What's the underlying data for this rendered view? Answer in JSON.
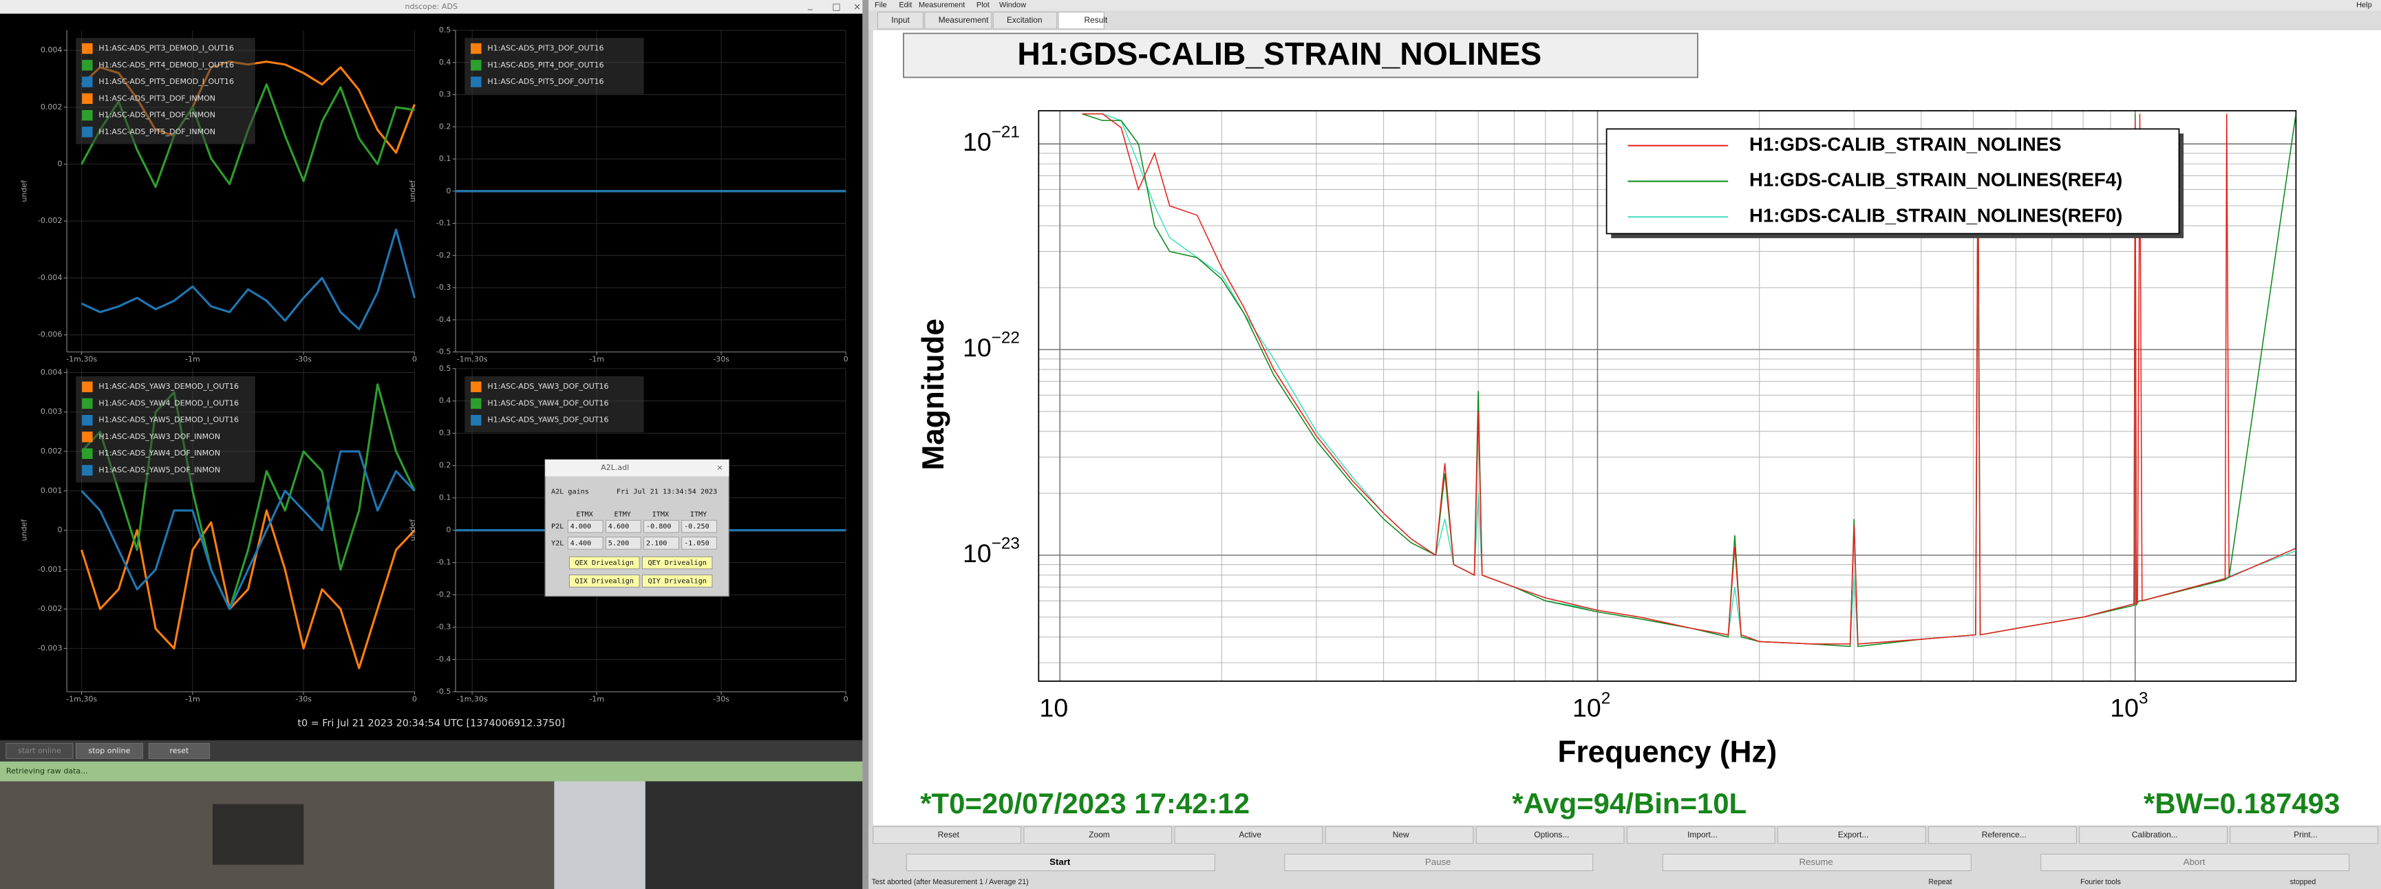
{
  "ndscope": {
    "window_title": "ndscope: ADS",
    "chart_data": [
      {
        "type": "line",
        "ylabel": "undef",
        "grid": true,
        "xlim": [
          -94,
          0
        ],
        "xticks": [
          {
            "value": -90,
            "label": "-1m,30s"
          },
          {
            "value": -60,
            "label": "-1m"
          },
          {
            "value": -30,
            "label": "-30s"
          },
          0
        ],
        "ylim": [
          -0.0066,
          0.0047
        ],
        "yticks": [
          0.004,
          0.002,
          0,
          -0.002,
          -0.004,
          -0.006
        ],
        "x": [
          -90,
          -85,
          -80,
          -75,
          -70,
          -65,
          -60,
          -55,
          -50,
          -45,
          -40,
          -35,
          -30,
          -25,
          -20,
          -15,
          -10,
          -5,
          0
        ],
        "series": [
          {
            "name": "H1:ASC-ADS_PIT3_DEMOD_I_OUT16",
            "color": "#ff7f0e",
            "values": [
              0.0028,
              0.0034,
              0.0032,
              0.0023,
              0.0012,
              0.001,
              0.002,
              0.0034,
              0.0036,
              0.0035,
              0.0036,
              0.0035,
              0.0032,
              0.0028,
              0.0034,
              0.0026,
              0.0012,
              0.0004,
              0.0021
            ]
          },
          {
            "name": "H1:ASC-ADS_PIT4_DEMOD_I_OUT16",
            "color": "#2ca02c",
            "values": [
              0.0,
              0.0012,
              0.0022,
              0.0005,
              -0.0008,
              0.001,
              0.002,
              0.0002,
              -0.0007,
              0.0012,
              0.0028,
              0.001,
              -0.0006,
              0.0015,
              0.0027,
              0.0009,
              0.0,
              0.002,
              0.0019
            ]
          },
          {
            "name": "H1:ASC-ADS_PIT5_DEMOD_I_OUT16",
            "color": "#1f77b4",
            "values": [
              -0.0049,
              -0.0052,
              -0.005,
              -0.0047,
              -0.0051,
              -0.0048,
              -0.0043,
              -0.005,
              -0.0052,
              -0.0044,
              -0.0048,
              -0.0055,
              -0.0047,
              -0.004,
              -0.0052,
              -0.0058,
              -0.0045,
              -0.0023,
              -0.0047
            ]
          },
          {
            "name": "H1:ASC-ADS_PIT3_DOF_INMON",
            "color": "#ff7f0e",
            "values": [
              null,
              null,
              null,
              null,
              null,
              null,
              null,
              null,
              null,
              null,
              null,
              null,
              null,
              null,
              null,
              null,
              null,
              null,
              null
            ]
          },
          {
            "name": "H1:ASC-ADS_PIT4_DOF_INMON",
            "color": "#2ca02c",
            "values": [
              null,
              null,
              null,
              null,
              null,
              null,
              null,
              null,
              null,
              null,
              null,
              null,
              null,
              null,
              null,
              null,
              null,
              null,
              null
            ]
          },
          {
            "name": "H1:ASC-ADS_PIT5_DOF_INMON",
            "color": "#1f77b4",
            "values": [
              null,
              null,
              null,
              null,
              null,
              null,
              null,
              null,
              null,
              null,
              null,
              null,
              null,
              null,
              null,
              null,
              null,
              null,
              null
            ]
          }
        ]
      },
      {
        "type": "line",
        "ylabel": "undef",
        "grid": true,
        "xlim": [
          -94,
          0
        ],
        "xticks": [
          {
            "value": -90,
            "label": "-1m,30s"
          },
          {
            "value": -60,
            "label": "-1m"
          },
          {
            "value": -30,
            "label": "-30s"
          },
          0
        ],
        "ylim": [
          -0.5,
          0.5
        ],
        "yticks": [
          0.5,
          0.4,
          0.3,
          0.2,
          0.1,
          0,
          -0.1,
          -0.2,
          -0.3,
          -0.4,
          -0.5
        ],
        "x": [
          -94,
          0
        ],
        "series": [
          {
            "name": "H1:ASC-ADS_PIT3_DOF_OUT16",
            "color": "#ff7f0e",
            "values": [
              0,
              0
            ]
          },
          {
            "name": "H1:ASC-ADS_PIT4_DOF_OUT16",
            "color": "#2ca02c",
            "values": [
              0,
              0
            ]
          },
          {
            "name": "H1:ASC-ADS_PIT5_DOF_OUT16",
            "color": "#1f77b4",
            "values": [
              0,
              0
            ]
          }
        ]
      },
      {
        "type": "line",
        "ylabel": "undef",
        "grid": true,
        "xlim": [
          -94,
          0
        ],
        "xticks": [
          {
            "value": -90,
            "label": "-1m,30s"
          },
          {
            "value": -60,
            "label": "-1m"
          },
          {
            "value": -30,
            "label": "-30s"
          },
          0
        ],
        "ylim": [
          -0.0041,
          0.0041
        ],
        "yticks": [
          0.004,
          0.003,
          0.002,
          0.001,
          0,
          -0.001,
          -0.002,
          -0.003
        ],
        "x": [
          -90,
          -85,
          -80,
          -75,
          -70,
          -65,
          -60,
          -55,
          -50,
          -45,
          -40,
          -35,
          -30,
          -25,
          -20,
          -15,
          -10,
          -5,
          0
        ],
        "series": [
          {
            "name": "H1:ASC-ADS_YAW3_DEMOD_I_OUT16",
            "color": "#ff7f0e",
            "values": [
              -0.0005,
              -0.002,
              -0.0015,
              0.0,
              -0.0025,
              -0.003,
              -0.0005,
              0.0002,
              -0.002,
              -0.0015,
              0.0005,
              -0.001,
              -0.003,
              -0.0015,
              -0.002,
              -0.0035,
              -0.002,
              -0.0005,
              0.0
            ]
          },
          {
            "name": "H1:ASC-ADS_YAW4_DEMOD_I_OUT16",
            "color": "#2ca02c",
            "values": [
              0.002,
              0.0025,
              0.001,
              -0.0005,
              0.003,
              0.0035,
              0.001,
              -0.001,
              -0.002,
              -0.0005,
              0.0015,
              0.0005,
              0.002,
              0.0015,
              -0.001,
              0.0005,
              0.0037,
              0.002,
              0.001
            ]
          },
          {
            "name": "H1:ASC-ADS_YAW5_DEMOD_I_OUT16",
            "color": "#1f77b4",
            "values": [
              0.001,
              0.0005,
              -0.0005,
              -0.0015,
              -0.001,
              0.0005,
              0.0005,
              -0.001,
              -0.002,
              -0.001,
              0.0,
              0.001,
              0.0005,
              0.0,
              0.002,
              0.002,
              0.0005,
              0.0015,
              0.001
            ]
          },
          {
            "name": "H1:ASC-ADS_YAW3_DOF_INMON",
            "color": "#ff7f0e",
            "values": [
              null,
              null,
              null,
              null,
              null,
              null,
              null,
              null,
              null,
              null,
              null,
              null,
              null,
              null,
              null,
              null,
              null,
              null,
              null
            ]
          },
          {
            "name": "H1:ASC-ADS_YAW4_DOF_INMON",
            "color": "#2ca02c",
            "values": [
              null,
              null,
              null,
              null,
              null,
              null,
              null,
              null,
              null,
              null,
              null,
              null,
              null,
              null,
              null,
              null,
              null,
              null,
              null
            ]
          },
          {
            "name": "H1:ASC-ADS_YAW5_DOF_INMON",
            "color": "#1f77b4",
            "values": [
              null,
              null,
              null,
              null,
              null,
              null,
              null,
              null,
              null,
              null,
              null,
              null,
              null,
              null,
              null,
              null,
              null,
              null,
              null
            ]
          }
        ]
      },
      {
        "type": "line",
        "ylabel": "undef",
        "grid": true,
        "xlim": [
          -94,
          0
        ],
        "xticks": [
          {
            "value": -90,
            "label": "-1m,30s"
          },
          {
            "value": -60,
            "label": "-1m"
          },
          {
            "value": -30,
            "label": "-30s"
          },
          0
        ],
        "ylim": [
          -0.5,
          0.5
        ],
        "yticks": [
          0.5,
          0.4,
          0.3,
          0.2,
          0.1,
          0,
          -0.1,
          -0.2,
          -0.3,
          -0.4,
          -0.5
        ],
        "x": [
          -94,
          0
        ],
        "series": [
          {
            "name": "H1:ASC-ADS_YAW3_DOF_OUT16",
            "color": "#ff7f0e",
            "values": [
              0,
              0
            ]
          },
          {
            "name": "H1:ASC-ADS_YAW4_DOF_OUT16",
            "color": "#2ca02c",
            "values": [
              0,
              0
            ]
          },
          {
            "name": "H1:ASC-ADS_YAW5_DOF_OUT16",
            "color": "#1f77b4",
            "values": [
              0,
              0
            ]
          }
        ]
      }
    ],
    "t0": "t0 = Fri Jul 21 2023 20:34:54 UTC [1374006912.3750]",
    "buttons": [
      "start online",
      "stop online",
      "reset"
    ],
    "status": "Retrieving raw data..."
  },
  "a2l": {
    "title": "A2L.adl",
    "heading": "A2L gains",
    "date": "Fri Jul 21 13:34:54 2023",
    "columns": [
      "ETMX",
      "ETMY",
      "ITMX",
      "ITMY"
    ],
    "rows": [
      {
        "label": "P2L",
        "values": [
          "4.000",
          "4.600",
          "-0.800",
          "-0.250"
        ]
      },
      {
        "label": "Y2L",
        "values": [
          "4.400",
          "5.200",
          "2.100",
          "-1.050"
        ]
      }
    ],
    "buttons": [
      "QEX Drivealign",
      "QEY Drivealign",
      "QIX Drivealign",
      "QIY Drivealign"
    ]
  },
  "dtt": {
    "menu": [
      "File",
      "Edit",
      "Measurement",
      "Plot",
      "Window"
    ],
    "help": "Help",
    "tabs": [
      "Input",
      "Measurement",
      "Excitation",
      "Result"
    ],
    "chart_data": {
      "type": "line",
      "title": "H1:GDS-CALIB_STRAIN_NOLINES",
      "xlabel": "Frequency (Hz)",
      "ylabel": "Magnitude",
      "xscale": "log",
      "yscale": "log",
      "grid": true,
      "legend": "upper right",
      "xlim": [
        9.13,
        1991
      ],
      "xticks": [
        10,
        {
          "value": 100,
          "label": "10",
          "exponent": "2"
        },
        {
          "value": 1000,
          "label": "10",
          "exponent": "3"
        }
      ],
      "xminor_ticks": [
        20,
        30,
        40,
        50,
        60,
        70,
        80,
        90,
        200,
        300,
        400,
        500,
        600,
        700,
        800,
        900
      ],
      "ylim": [
        2.44e-24,
        1.45e-21
      ],
      "yticks": [
        {
          "value": 1e-21,
          "label": "10",
          "exponent": "−21"
        },
        {
          "value": 1e-22,
          "label": "10",
          "exponent": "−22"
        },
        {
          "value": 1e-23,
          "label": "10",
          "exponent": "−23"
        }
      ],
      "yminor_ticks": [
        3e-24,
        4e-24,
        5e-24,
        6e-24,
        7e-24,
        8e-24,
        9e-24,
        2e-23,
        3e-23,
        4e-23,
        5e-23,
        6e-23,
        7e-23,
        8e-23,
        9e-23,
        2e-22,
        3e-22,
        4e-22,
        5e-22,
        6e-22,
        7e-22,
        8e-22,
        9e-22
      ],
      "x": [
        11,
        12,
        13,
        14,
        15,
        16,
        18,
        20,
        22,
        25,
        30,
        35,
        40,
        45,
        50,
        52,
        54,
        59,
        60,
        61,
        70,
        80,
        100,
        120,
        150,
        175,
        180,
        185,
        200,
        250,
        295,
        300,
        305,
        400,
        505,
        510,
        515,
        600,
        800,
        995,
        1000,
        1005,
        1010,
        1020,
        1030,
        1470,
        1480,
        1495,
        1990
      ],
      "series": [
        {
          "name": "H1:GDS-CALIB_STRAIN_NOLINES",
          "color": "#e8201c",
          "values": [
            1.4e-21,
            1.4e-21,
            1.2e-21,
            6e-22,
            9e-22,
            5e-22,
            4.5e-22,
            2.5e-22,
            1.6e-22,
            8e-23,
            3.8e-23,
            2.3e-23,
            1.6e-23,
            1.2e-23,
            1e-23,
            2.8e-23,
            9e-24,
            8e-24,
            5e-23,
            8e-24,
            7e-24,
            6.2e-24,
            5.4e-24,
            5e-24,
            4.4e-24,
            4.1e-24,
            1.1e-23,
            4.1e-24,
            3.8e-24,
            3.7e-24,
            3.7e-24,
            1.4e-23,
            3.7e-24,
            3.9e-24,
            4.1e-24,
            9e-22,
            4.1e-24,
            4.4e-24,
            5e-24,
            5.8e-24,
            1.3e-21,
            5.8e-24,
            5.9e-24,
            1.4e-21,
            6e-24,
            7.7e-24,
            1.4e-21,
            7.8e-24,
            1.08e-23
          ]
        },
        {
          "name": "H1:GDS-CALIB_STRAIN_NOLINES(REF4)",
          "color": "#0a8a1a",
          "values": [
            1.4e-21,
            1.3e-21,
            1.3e-21,
            1e-21,
            4e-22,
            3e-22,
            2.8e-22,
            2.2e-22,
            1.5e-22,
            7.5e-23,
            3.6e-23,
            2.2e-23,
            1.5e-23,
            1.15e-23,
            1e-23,
            2.5e-23,
            9e-24,
            8e-24,
            6.3e-23,
            8e-24,
            7e-24,
            6e-24,
            5.3e-24,
            4.9e-24,
            4.4e-24,
            4e-24,
            1.25e-23,
            4e-24,
            3.8e-24,
            3.7e-24,
            3.6e-24,
            1.5e-23,
            3.6e-24,
            3.9e-24,
            4.1e-24,
            1e-21,
            4.1e-24,
            4.4e-24,
            5e-24,
            5.7e-24,
            1.4e-21,
            5.7e-24,
            5.9e-24,
            6e-24,
            6e-24,
            7.6e-24,
            7.7e-24,
            7.8e-24,
            1.4e-21
          ]
        },
        {
          "name": "H1:GDS-CALIB_STRAIN_NOLINES(REF0)",
          "color": "#3fe0c0",
          "values": [
            1.4e-21,
            1.4e-21,
            1.3e-21,
            8e-22,
            5e-22,
            3.5e-22,
            2.8e-22,
            2.3e-22,
            1.5e-22,
            9e-23,
            4e-23,
            2.4e-23,
            1.6e-23,
            1.2e-23,
            1e-23,
            1.5e-23,
            9e-24,
            8e-24,
            2e-23,
            8e-24,
            7e-24,
            6e-24,
            5.4e-24,
            5e-24,
            4.4e-24,
            4.1e-24,
            7e-24,
            4.1e-24,
            3.8e-24,
            3.7e-24,
            3.7e-24,
            8e-24,
            3.7e-24,
            3.9e-24,
            4.1e-24,
            3e-22,
            4.1e-24,
            4.4e-24,
            5e-24,
            5.8e-24,
            5e-22,
            5.8e-24,
            5.9e-24,
            6e-24,
            6e-24,
            7.7e-24,
            7.8e-24,
            7.9e-24,
            1.05e-23
          ]
        }
      ],
      "annotations": [
        "*T0=20/07/2023 17:42:12",
        "*Avg=94/Bin=10L",
        "*BW=0.187493"
      ]
    },
    "buttons": [
      "Reset",
      "Zoom",
      "Active",
      "New",
      "Options...",
      "Import...",
      "Export...",
      "Reference...",
      "Calibration...",
      "Print..."
    ],
    "run_buttons": [
      "Start",
      "Pause",
      "Resume",
      "Abort"
    ],
    "status": [
      "Test aborted (after Measurement 1 / Average 21)",
      "Repeat",
      "Fourier tools",
      "stopped"
    ]
  }
}
